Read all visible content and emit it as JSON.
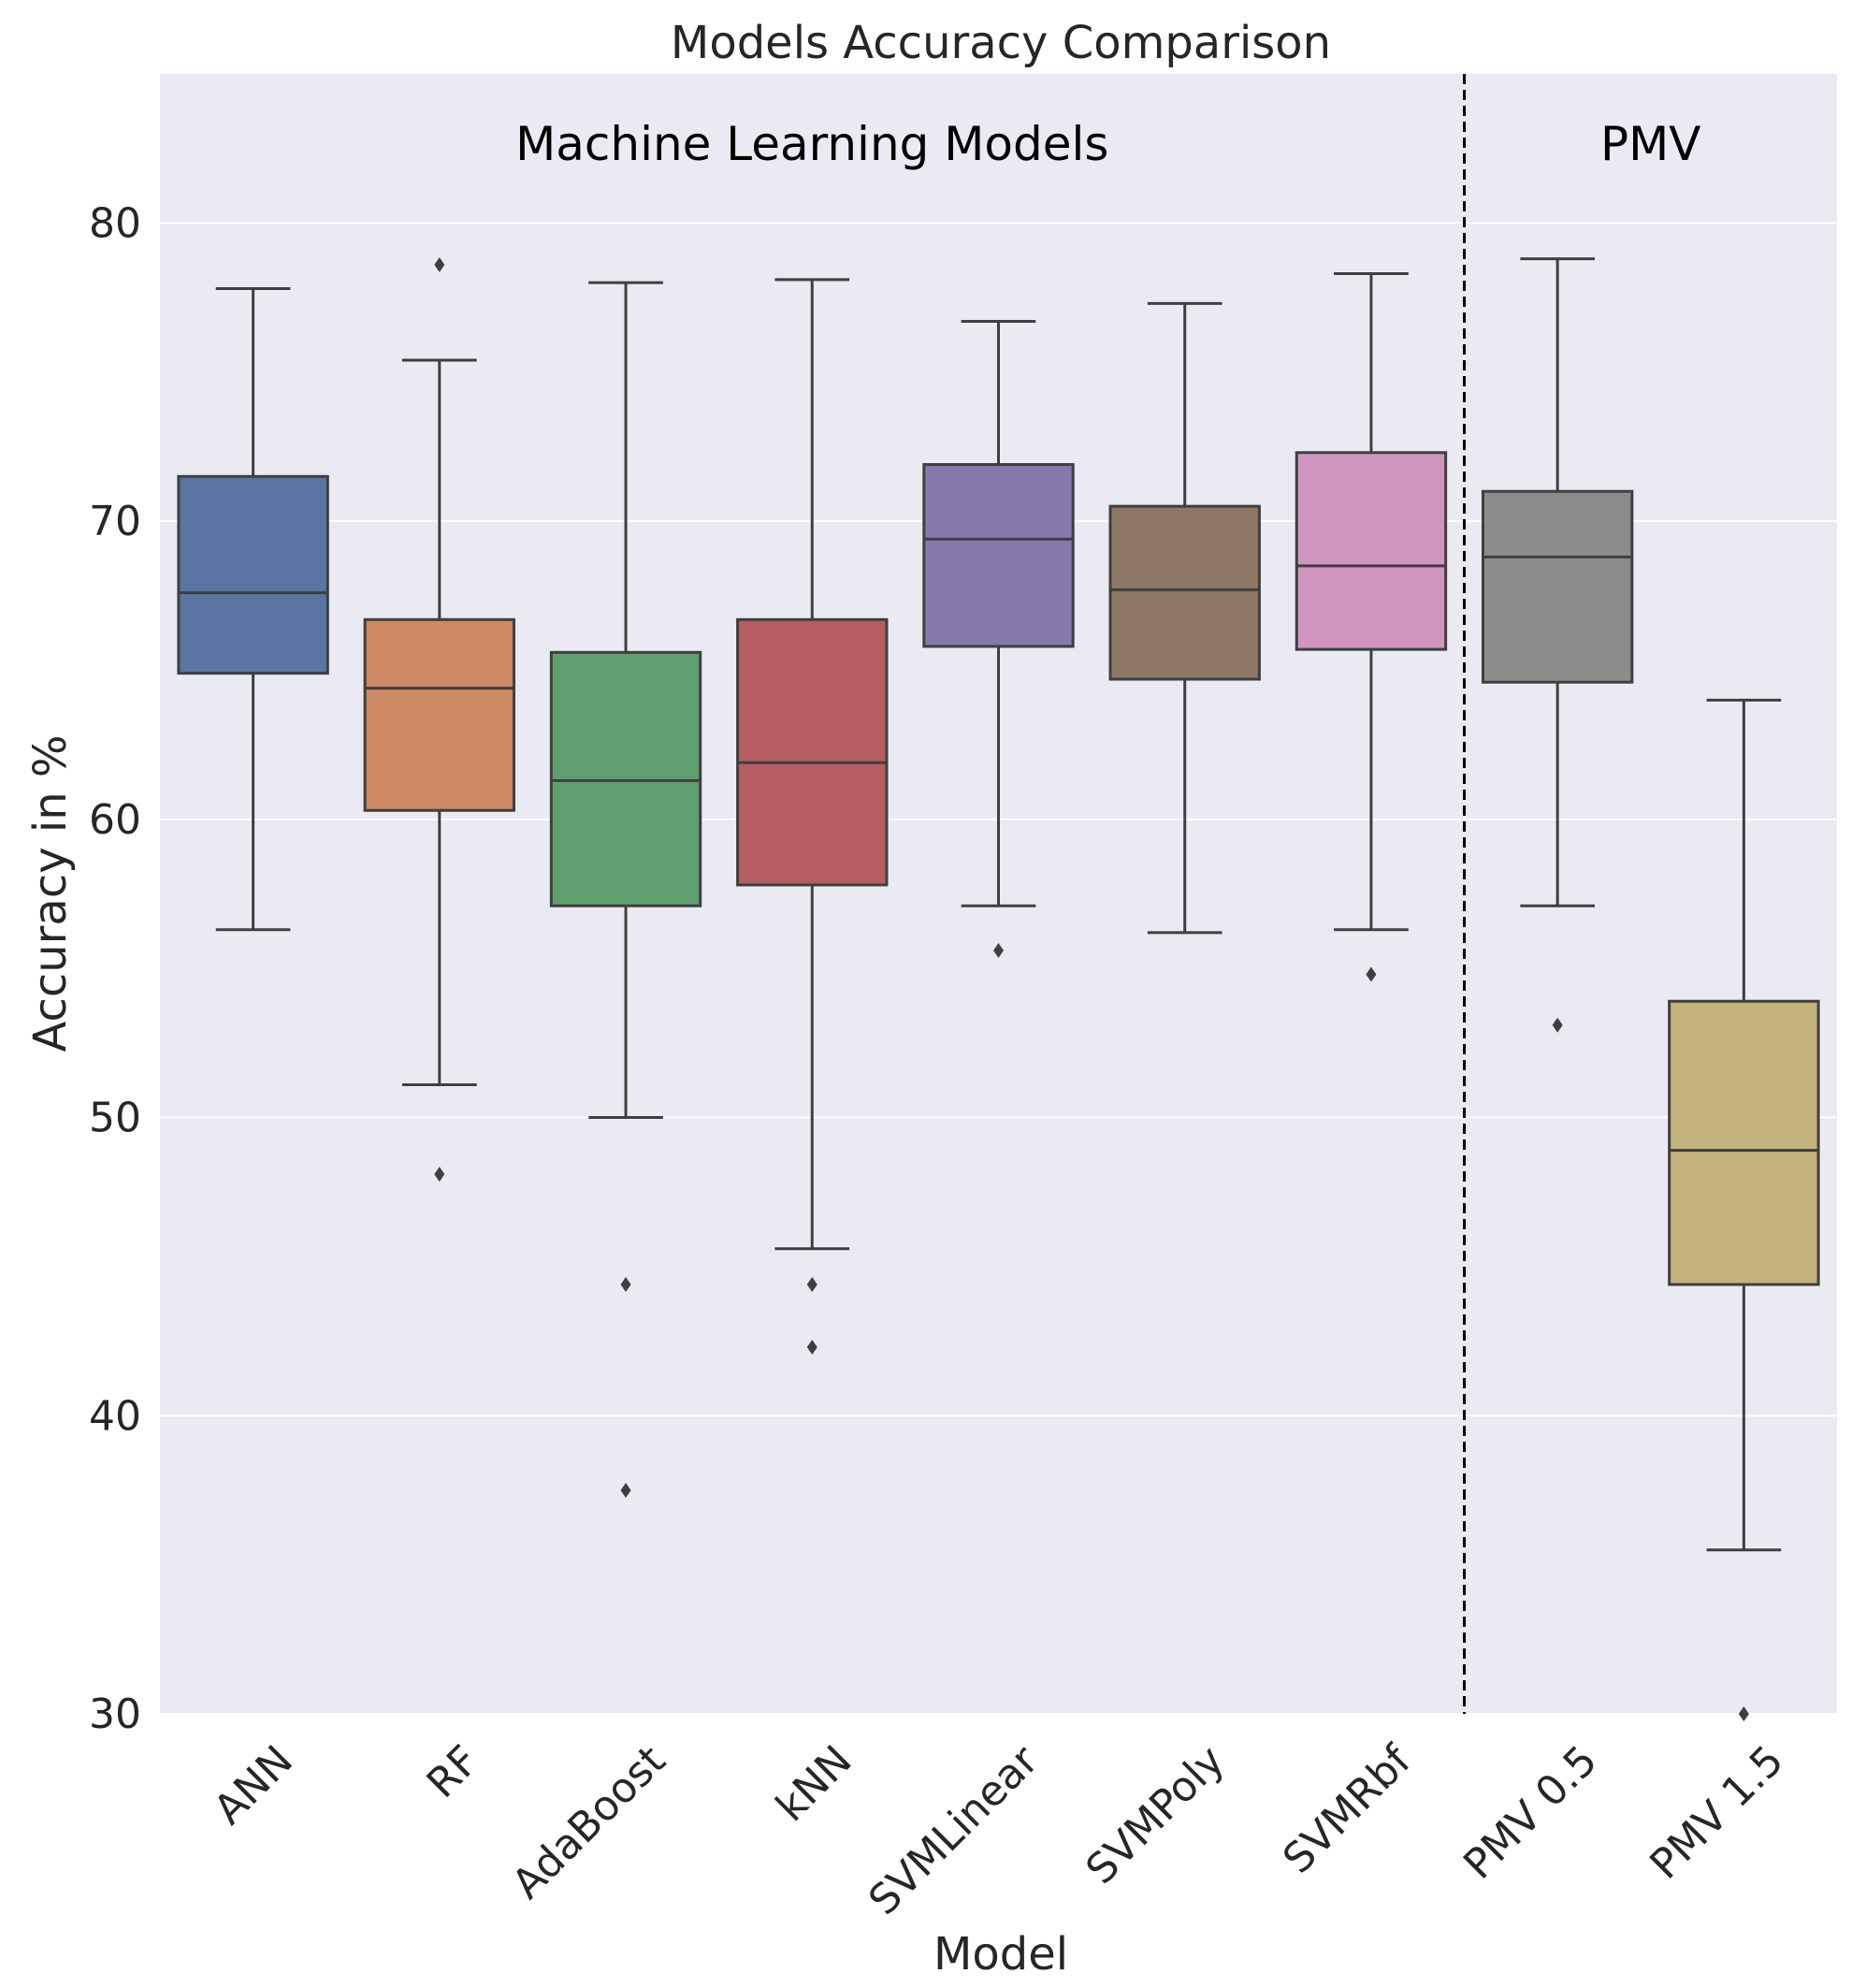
{
  "chart_data": {
    "type": "box",
    "title": "Models Accuracy Comparison",
    "xlabel": "Model",
    "ylabel": "Accuracy in %",
    "ylim": [
      30,
      85
    ],
    "yticks": [
      30,
      40,
      50,
      60,
      70,
      80
    ],
    "grid": true,
    "group_labels": [
      {
        "text": "Machine Learning Models",
        "from_category": 0,
        "to_category": 6
      },
      {
        "text": "PMV",
        "from_category": 7,
        "to_category": 8
      }
    ],
    "divider_after_category": 6,
    "categories": [
      "ANN",
      "RF",
      "AdaBoost",
      "kNN",
      "SVMLinear",
      "SVMPoly",
      "SVMRbf",
      "PMV 0.5",
      "PMV 1.5"
    ],
    "series": [
      {
        "name": "ANN",
        "color": "#5875a4",
        "whisker_low": 56.3,
        "q1": 64.9,
        "median": 67.6,
        "q3": 71.5,
        "whisker_high": 77.8,
        "outliers": []
      },
      {
        "name": "RF",
        "color": "#cc8963",
        "whisker_low": 51.1,
        "q1": 60.3,
        "median": 64.4,
        "q3": 66.7,
        "whisker_high": 75.4,
        "outliers": [
          78.6,
          48.1
        ]
      },
      {
        "name": "AdaBoost",
        "color": "#5f9e6e",
        "whisker_low": 50.0,
        "q1": 57.1,
        "median": 61.3,
        "q3": 65.6,
        "whisker_high": 78.0,
        "outliers": [
          44.4,
          37.5
        ]
      },
      {
        "name": "kNN",
        "color": "#b55d60",
        "whisker_low": 45.6,
        "q1": 57.8,
        "median": 61.9,
        "q3": 66.7,
        "whisker_high": 78.1,
        "outliers": [
          44.4,
          42.3
        ]
      },
      {
        "name": "SVMLinear",
        "color": "#857aab",
        "whisker_low": 57.1,
        "q1": 65.8,
        "median": 69.4,
        "q3": 71.9,
        "whisker_high": 76.7,
        "outliers": [
          55.6
        ]
      },
      {
        "name": "SVMPoly",
        "color": "#8d7866",
        "whisker_low": 56.2,
        "q1": 64.7,
        "median": 67.7,
        "q3": 70.5,
        "whisker_high": 77.3,
        "outliers": []
      },
      {
        "name": "SVMRbf",
        "color": "#d095bf",
        "whisker_low": 56.3,
        "q1": 65.7,
        "median": 68.5,
        "q3": 72.3,
        "whisker_high": 78.3,
        "outliers": [
          54.8
        ]
      },
      {
        "name": "PMV 0.5",
        "color": "#8c8c8c",
        "whisker_low": 57.1,
        "q1": 64.6,
        "median": 68.8,
        "q3": 71.0,
        "whisker_high": 78.8,
        "outliers": [
          53.1
        ]
      },
      {
        "name": "PMV 1.5",
        "color": "#c4b37c",
        "whisker_low": 35.5,
        "q1": 44.4,
        "median": 48.9,
        "q3": 53.9,
        "whisker_high": 64.0,
        "outliers": [
          30.0
        ]
      }
    ]
  }
}
